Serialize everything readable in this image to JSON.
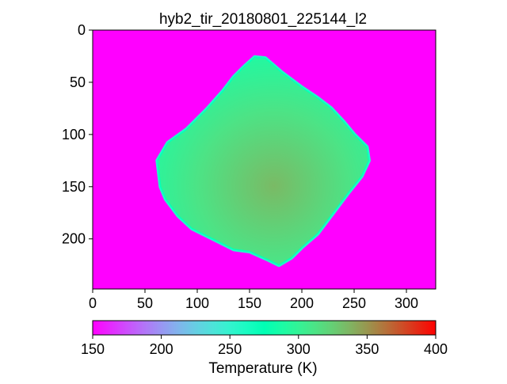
{
  "chart_data": {
    "type": "heatmap",
    "title": "hyb2_tir_20180801_225144_l2",
    "image": {
      "x_range": [
        0,
        328
      ],
      "y_range": [
        0,
        248
      ],
      "y_inverted": true,
      "x_ticks": [
        0,
        50,
        100,
        150,
        200,
        250,
        300
      ],
      "y_ticks": [
        0,
        50,
        100,
        150,
        200
      ],
      "background_value": 150,
      "object": {
        "description": "asteroid Ryugu thermal image",
        "outline": [
          [
            155,
            26
          ],
          [
            165,
            27
          ],
          [
            180,
            40
          ],
          [
            200,
            55
          ],
          [
            215,
            65
          ],
          [
            228,
            75
          ],
          [
            240,
            88
          ],
          [
            250,
            100
          ],
          [
            262,
            112
          ],
          [
            264,
            125
          ],
          [
            257,
            140
          ],
          [
            245,
            155
          ],
          [
            230,
            175
          ],
          [
            215,
            195
          ],
          [
            200,
            208
          ],
          [
            190,
            218
          ],
          [
            178,
            225
          ],
          [
            168,
            220
          ],
          [
            150,
            212
          ],
          [
            135,
            210
          ],
          [
            115,
            200
          ],
          [
            95,
            190
          ],
          [
            82,
            178
          ],
          [
            70,
            162
          ],
          [
            65,
            150
          ],
          [
            62,
            125
          ],
          [
            72,
            108
          ],
          [
            90,
            95
          ],
          [
            110,
            75
          ],
          [
            125,
            58
          ],
          [
            135,
            45
          ],
          [
            145,
            35
          ]
        ],
        "upper_mean_value": 290,
        "lower_mean_value": 335,
        "limb_value": 255
      }
    },
    "colorbar": {
      "label": "Temperature (K)",
      "range": [
        150,
        400
      ],
      "ticks": [
        150,
        200,
        250,
        300,
        350,
        400
      ],
      "colormap": "rainbow",
      "orientation": "horizontal"
    }
  }
}
